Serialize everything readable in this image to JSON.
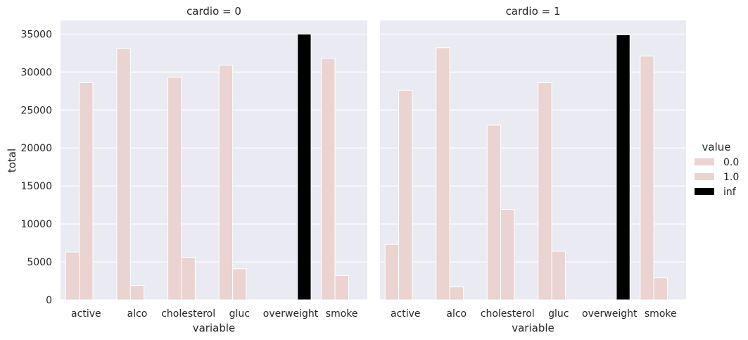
{
  "chart_data": {
    "type": "bar",
    "ylabel": "total",
    "xlabel": "variable",
    "ylim": [
      0,
      36800
    ],
    "yticks": [
      0,
      5000,
      10000,
      15000,
      20000,
      25000,
      30000,
      35000
    ],
    "categories": [
      "active",
      "alco",
      "cholesterol",
      "gluc",
      "overweight",
      "smoke"
    ],
    "legend": {
      "title": "value",
      "placement": "right",
      "entries": [
        {
          "label": "0.0",
          "color": "#ead3d0"
        },
        {
          "label": "1.0",
          "color": "#ead3d0"
        },
        {
          "label": "inf",
          "color": "#000000"
        }
      ]
    },
    "background": "#eaeaf2",
    "grid": true,
    "panels": [
      {
        "title": "cardio = 0",
        "series": [
          {
            "name": "0.0",
            "values": [
              6300,
              33100,
              29300,
              30900,
              0,
              31800
            ]
          },
          {
            "name": "1.0",
            "values": [
              28600,
              1900,
              5600,
              4100,
              0,
              3200
            ]
          },
          {
            "name": "inf",
            "values": [
              0,
              0,
              0,
              0,
              35000,
              0
            ]
          }
        ]
      },
      {
        "title": "cardio = 1",
        "series": [
          {
            "name": "0.0",
            "values": [
              7300,
              33200,
              23000,
              28600,
              0,
              32100
            ]
          },
          {
            "name": "1.0",
            "values": [
              27600,
              1700,
              11900,
              6400,
              0,
              2900
            ]
          },
          {
            "name": "inf",
            "values": [
              0,
              0,
              0,
              0,
              34900,
              0
            ]
          }
        ]
      }
    ]
  }
}
